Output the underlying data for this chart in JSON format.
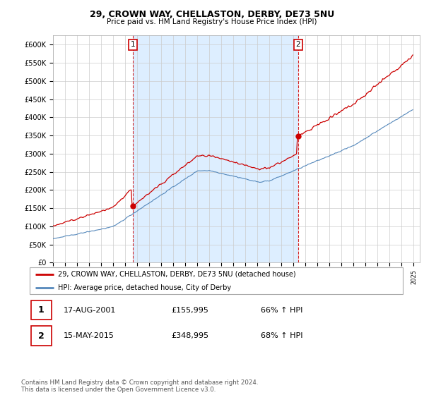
{
  "title": "29, CROWN WAY, CHELLASTON, DERBY, DE73 5NU",
  "subtitle": "Price paid vs. HM Land Registry's House Price Index (HPI)",
  "legend_line1": "29, CROWN WAY, CHELLASTON, DERBY, DE73 5NU (detached house)",
  "legend_line2": "HPI: Average price, detached house, City of Derby",
  "sale1_date": "17-AUG-2001",
  "sale1_price": "£155,995",
  "sale1_hpi": "66% ↑ HPI",
  "sale2_date": "15-MAY-2015",
  "sale2_price": "£348,995",
  "sale2_hpi": "68% ↑ HPI",
  "footer": "Contains HM Land Registry data © Crown copyright and database right 2024.\nThis data is licensed under the Open Government Licence v3.0.",
  "house_color": "#cc0000",
  "hpi_color": "#5588bb",
  "vline_color": "#cc0000",
  "fill_color": "#ddeeff",
  "ylim_min": 0,
  "ylim_max": 625000,
  "yticks": [
    0,
    50000,
    100000,
    150000,
    200000,
    250000,
    300000,
    350000,
    400000,
    450000,
    500000,
    550000,
    600000
  ],
  "ytick_labels": [
    "£0",
    "£50K",
    "£100K",
    "£150K",
    "£200K",
    "£250K",
    "£300K",
    "£350K",
    "£400K",
    "£450K",
    "£500K",
    "£550K",
    "£600K"
  ],
  "sale1_x": 2001.625,
  "sale1_y": 155995,
  "sale2_x": 2015.375,
  "sale2_y": 348995,
  "xmin": 1995,
  "xmax": 2025.5
}
